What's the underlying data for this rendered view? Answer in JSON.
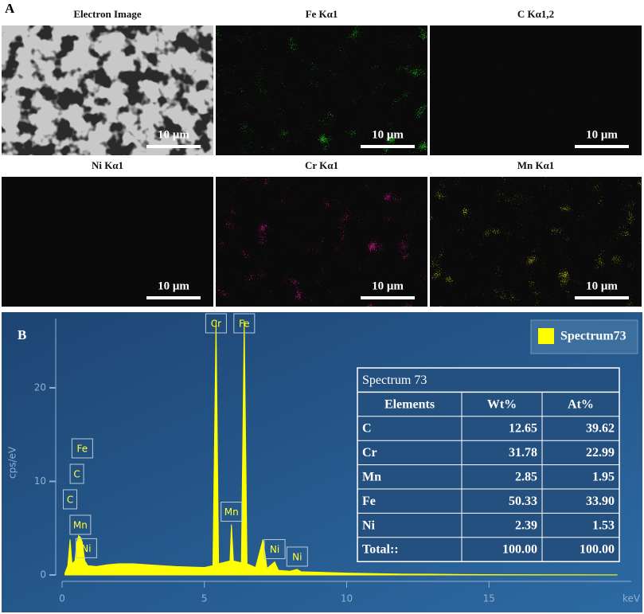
{
  "panels": {
    "a_label": "A",
    "b_label": "B"
  },
  "maps": [
    {
      "title": "Electron Image",
      "scale_bar": "10 μm",
      "color": "#c8c8c8"
    },
    {
      "title": "Fe Kα1",
      "scale_bar": "10 μm",
      "color": "#22d21e"
    },
    {
      "title": "C Kα1,2",
      "scale_bar": "10 μm",
      "color": "#e01818"
    },
    {
      "title": "Ni Kα1",
      "scale_bar": "10 μm",
      "color": "#22c8c8"
    },
    {
      "title": "Cr Kα1",
      "scale_bar": "10 μm",
      "color": "#d81a8c"
    },
    {
      "title": "Mn Kα1",
      "scale_bar": "10 μm",
      "color": "#c8c81e"
    }
  ],
  "chart_data": {
    "type": "area",
    "xlabel": "keV",
    "ylabel": "cps/eV",
    "x": [
      0.1,
      0.2,
      0.28,
      0.35,
      0.45,
      0.52,
      0.58,
      0.65,
      0.71,
      0.8,
      0.9,
      1.2,
      1.6,
      2,
      2.5,
      3,
      3.5,
      4,
      4.5,
      5,
      5.3,
      5.41,
      5.5,
      5.9,
      5.95,
      6.02,
      6.3,
      6.4,
      6.5,
      6.8,
      7.06,
      7.2,
      7.47,
      7.6,
      8,
      8.26,
      8.4,
      9,
      10,
      11,
      12,
      13,
      14,
      16,
      18,
      19.5
    ],
    "series": [
      {
        "name": "Spectrum73",
        "color": "#ffff00",
        "values": [
          0.2,
          1,
          3.8,
          1.2,
          1.5,
          3.5,
          4.2,
          4,
          3.5,
          1.5,
          1,
          0.9,
          1.1,
          1.2,
          1.2,
          1.1,
          1,
          0.9,
          0.85,
          0.8,
          1,
          27.2,
          1.2,
          1.5,
          5.4,
          1.5,
          1.3,
          27.2,
          1.2,
          0.8,
          3.8,
          0.7,
          1.4,
          0.5,
          0.4,
          0.6,
          0.35,
          0.3,
          0.2,
          0.15,
          0.1,
          0.08,
          0.05,
          0.03,
          0.02,
          0.01
        ]
      }
    ],
    "xlim": [
      0,
      20
    ],
    "ylim": [
      0,
      27.4
    ],
    "xticks": [
      0,
      5,
      10,
      15
    ],
    "yticks": [
      0,
      10,
      20
    ],
    "annotations": [
      {
        "text": "Cr",
        "x": 5.41
      },
      {
        "text": "Fe",
        "x": 6.4
      },
      {
        "text": "Mn",
        "x": 5.95
      },
      {
        "text": "Ni",
        "x": 7.47
      },
      {
        "text": "Ni",
        "x": 8.26
      },
      {
        "text": "Mn",
        "x": 0.64
      },
      {
        "text": "C",
        "x": 0.28
      },
      {
        "text": "Ni",
        "x": 0.85
      },
      {
        "text": "C",
        "x": 0.52
      },
      {
        "text": "Fe",
        "x": 0.71
      }
    ]
  },
  "table": {
    "title": "Spectrum 73",
    "columns": [
      "Elements",
      "Wt%",
      "At%"
    ],
    "rows": [
      [
        "C",
        "12.65",
        "39.62"
      ],
      [
        "Cr",
        "31.78",
        "22.99"
      ],
      [
        "Mn",
        "2.85",
        "1.95"
      ],
      [
        "Fe",
        "50.33",
        "33.90"
      ],
      [
        "Ni",
        "2.39",
        "1.53"
      ],
      [
        "Total::",
        "100.00",
        "100.00"
      ]
    ]
  }
}
